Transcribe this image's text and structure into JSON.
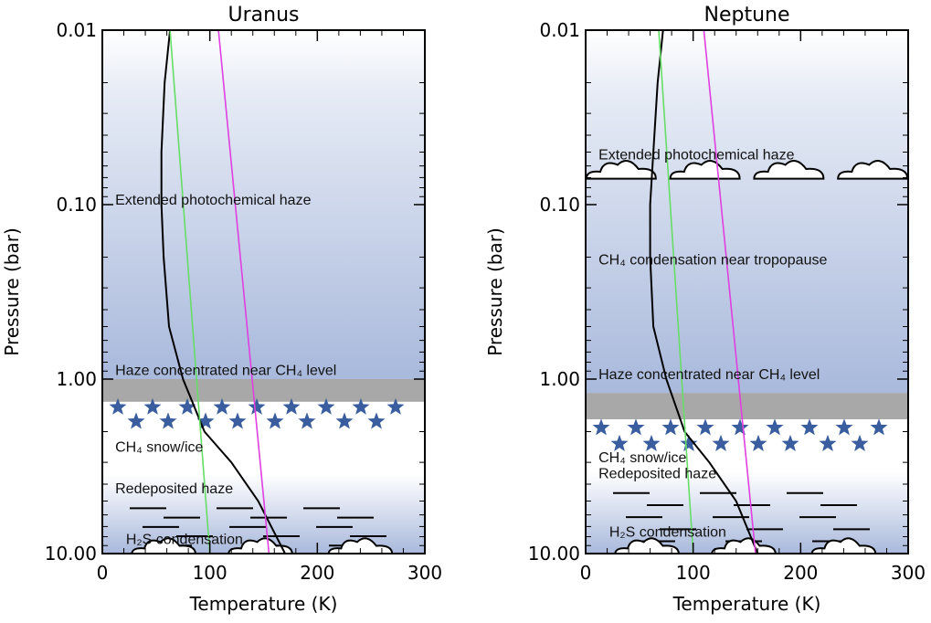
{
  "chart_data": [
    {
      "type": "line",
      "title": "Uranus",
      "xlabel": "Temperature (K)",
      "ylabel": "Pressure (bar)",
      "xlim": [
        0,
        300
      ],
      "ylim": [
        0.01,
        10.0
      ],
      "y_scale": "log",
      "x_ticks": [
        "0",
        "100",
        "200",
        "300"
      ],
      "y_ticks": [
        "0.01",
        "0.10",
        "1.00",
        "10.00"
      ],
      "series": [
        {
          "color": "#000000",
          "points": [
            [
              63,
              0.01
            ],
            [
              58,
              0.02
            ],
            [
              55,
              0.05
            ],
            [
              55,
              0.1
            ],
            [
              57,
              0.2
            ],
            [
              62,
              0.5
            ],
            [
              75,
              1.0
            ],
            [
              95,
              2.0
            ],
            [
              120,
              3.0
            ],
            [
              145,
              5.0
            ],
            [
              170,
              10.0
            ]
          ]
        },
        {
          "color": "#66dd66",
          "points": [
            [
              63,
              0.01
            ],
            [
              100,
              10.0
            ]
          ]
        },
        {
          "color": "#e040e0",
          "points": [
            [
              108,
              0.01
            ],
            [
              155,
              10.0
            ]
          ]
        }
      ],
      "annotations": [
        {
          "text": "Extended photochemical haze",
          "x": 12,
          "y": 0.1
        },
        {
          "text": "Haze concentrated near CH₄ level",
          "x": 12,
          "y": 0.95
        },
        {
          "text": "CH₄ snow/ice",
          "x": 12,
          "y": 2.6
        },
        {
          "text": "Redeposited haze",
          "x": 12,
          "y": 4.5
        },
        {
          "text": "H₂S condensation",
          "x": 22,
          "y": 8.8
        }
      ],
      "bands": {
        "haze_gray": [
          1.0,
          1.35
        ],
        "snow_row_pressures": [
          1.45,
          1.75
        ],
        "white_gap": [
          1.35,
          3.5
        ],
        "lower_start": 3.5
      },
      "clouds_pressure": 9.5,
      "dashes_pressure_range": [
        5.5,
        9.0
      ]
    },
    {
      "type": "line",
      "title": "Neptune",
      "xlabel": "Temperature (K)",
      "ylabel": "Pressure (bar)",
      "xlim": [
        0,
        300
      ],
      "ylim": [
        0.01,
        10.0
      ],
      "y_scale": "log",
      "x_ticks": [
        "0",
        "100",
        "200",
        "300"
      ],
      "y_ticks": [
        "0.01",
        "0.10",
        "1.00",
        "10.00"
      ],
      "series": [
        {
          "color": "#000000",
          "points": [
            [
              72,
              0.01
            ],
            [
              67,
              0.02
            ],
            [
              63,
              0.05
            ],
            [
              60,
              0.1
            ],
            [
              60,
              0.2
            ],
            [
              63,
              0.5
            ],
            [
              75,
              1.0
            ],
            [
              92,
              2.0
            ],
            [
              115,
              3.0
            ],
            [
              140,
              5.0
            ],
            [
              160,
              10.0
            ]
          ]
        },
        {
          "color": "#66dd66",
          "points": [
            [
              68,
              0.01
            ],
            [
              100,
              10.0
            ]
          ]
        },
        {
          "color": "#e040e0",
          "points": [
            [
              110,
              0.01
            ],
            [
              158,
              10.0
            ]
          ]
        }
      ],
      "annotations": [
        {
          "text": "Extended photochemical haze",
          "x": 12,
          "y": 0.055
        },
        {
          "text": "CH₄ condensation near tropopause",
          "x": 12,
          "y": 0.22
        },
        {
          "text": "Haze concentrated near CH₄ level",
          "x": 12,
          "y": 1.0
        },
        {
          "text": "CH₄ snow/ice",
          "x": 12,
          "y": 3.0
        },
        {
          "text": "Redeposited haze",
          "x": 12,
          "y": 3.7
        },
        {
          "text": "H₂S condensation",
          "x": 22,
          "y": 8.0
        }
      ],
      "bands": {
        "haze_gray": [
          1.2,
          1.7
        ],
        "snow_row_pressures": [
          1.9,
          2.35
        ],
        "white_gap": [
          1.7,
          3.4
        ],
        "lower_start": 3.4
      },
      "cloud_row_upper_pressure": 0.066,
      "clouds_pressure": 9.5,
      "dashes_pressure_range": [
        4.5,
        8.5
      ]
    }
  ]
}
